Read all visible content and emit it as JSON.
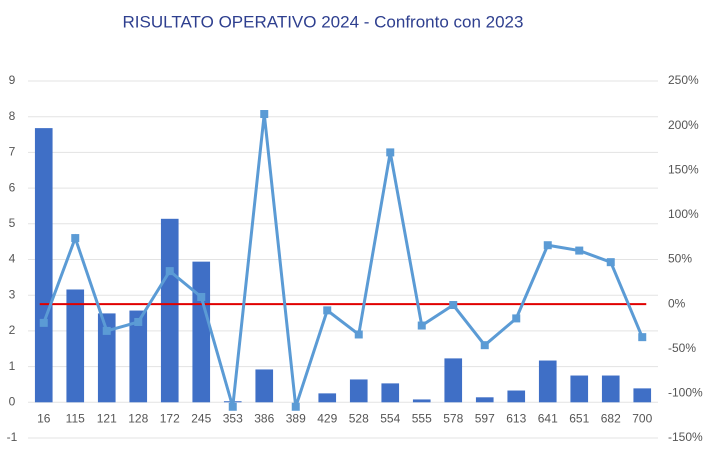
{
  "chart_data": {
    "type": "combo",
    "title": "RISULTATO OPERATIVO 2024 - Confronto con 2023",
    "categories": [
      "16",
      "115",
      "121",
      "128",
      "172",
      "245",
      "353",
      "386",
      "389",
      "429",
      "528",
      "554",
      "555",
      "578",
      "597",
      "613",
      "641",
      "651",
      "682",
      "700"
    ],
    "series": [
      {
        "type": "bar",
        "color": "#3f6fc6",
        "values": [
          7.68,
          3.16,
          2.49,
          2.57,
          5.14,
          3.94,
          0.03,
          0.92,
          0,
          0.25,
          0.64,
          0.53,
          0.08,
          1.23,
          0.14,
          0.33,
          1.17,
          0.75,
          0.75,
          0.39
        ]
      },
      {
        "type": "line",
        "axis": "y2",
        "color": "#5b9bd5",
        "values": [
          -21,
          74,
          -30,
          -20,
          37,
          8,
          -115,
          213,
          -115,
          -7,
          -34,
          170,
          -24,
          -1,
          -46,
          -16,
          66,
          60,
          47,
          -37
        ]
      }
    ],
    "ylim": [
      -1,
      9
    ],
    "yticks": [
      -1,
      0,
      1,
      2,
      3,
      4,
      5,
      6,
      7,
      8,
      9
    ],
    "y2lim": [
      -150,
      250
    ],
    "y2ticks": [
      {
        "value": -150,
        "label": "-150%"
      },
      {
        "value": -100,
        "label": "-100%"
      },
      {
        "value": -50,
        "label": "-50%"
      },
      {
        "value": 0,
        "label": "0%"
      },
      {
        "value": 50,
        "label": "50%"
      },
      {
        "value": 100,
        "label": "100%"
      },
      {
        "value": 150,
        "label": "150%"
      },
      {
        "value": 200,
        "label": "200%"
      },
      {
        "value": 250,
        "label": "250%"
      }
    ],
    "grid": true,
    "reference_line": {
      "value": 0,
      "axis": "y2",
      "color": "#e00000"
    }
  }
}
